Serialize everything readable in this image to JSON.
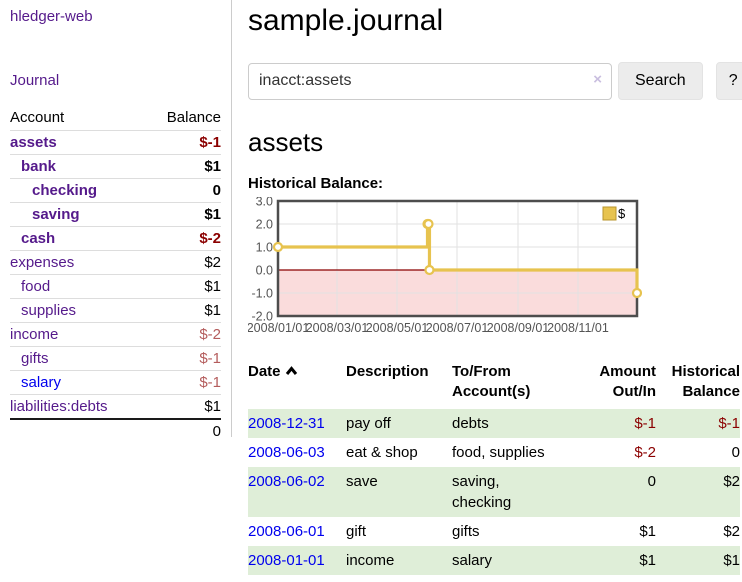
{
  "app": {
    "title": "hledger-web"
  },
  "colors": {
    "link_purple": "#551a8b",
    "link_blue": "#0000ee",
    "negative_strong": "#8b0000",
    "negative_muted": "#b45c5c",
    "row_green": "#dfeed8",
    "chart_gold": "#e7c34f",
    "chart_gold_dark": "#b8962e",
    "chart_negative_region": "#fadcdc",
    "chart_zero_line": "#8b0000"
  },
  "sidebar": {
    "journal_link": "Journal",
    "accounts": {
      "header_account": "Account",
      "header_balance": "Balance",
      "rows": [
        {
          "name": "assets",
          "balance": "$-1",
          "level": 0,
          "bold": true,
          "link_class": "link-purple",
          "balance_class": "neg-strong"
        },
        {
          "name": "bank",
          "balance": "$1",
          "level": 1,
          "bold": true,
          "link_class": "link-purple",
          "balance_class": ""
        },
        {
          "name": "checking",
          "balance": "0",
          "level": 2,
          "bold": true,
          "link_class": "link-purple",
          "balance_class": ""
        },
        {
          "name": "saving",
          "balance": "$1",
          "level": 2,
          "bold": true,
          "link_class": "link-purple",
          "balance_class": ""
        },
        {
          "name": "cash",
          "balance": "$-2",
          "level": 1,
          "bold": true,
          "link_class": "link-purple",
          "balance_class": "neg-strong"
        },
        {
          "name": "expenses",
          "balance": "$2",
          "level": 0,
          "bold": false,
          "link_class": "link-purple",
          "balance_class": ""
        },
        {
          "name": "food",
          "balance": "$1",
          "level": 1,
          "bold": false,
          "link_class": "link-purple",
          "balance_class": ""
        },
        {
          "name": "supplies",
          "balance": "$1",
          "level": 1,
          "bold": false,
          "link_class": "link-purple",
          "balance_class": ""
        },
        {
          "name": "income",
          "balance": "$-2",
          "level": 0,
          "bold": false,
          "link_class": "link-purple",
          "balance_class": "neg-muted"
        },
        {
          "name": "gifts",
          "balance": "$-1",
          "level": 1,
          "bold": false,
          "link_class": "link-purple",
          "balance_class": "neg-muted"
        },
        {
          "name": "salary",
          "balance": "$-1",
          "level": 1,
          "bold": false,
          "link_class": "link-blue",
          "balance_class": "neg-muted"
        },
        {
          "name": "liabilities:debts",
          "balance": "$1",
          "level": 0,
          "bold": false,
          "link_class": "link-purple",
          "balance_class": ""
        }
      ],
      "total": "0"
    }
  },
  "header": {
    "title": "sample.journal"
  },
  "search": {
    "query": "inacct:assets",
    "clear_icon": "×",
    "button_label": "Search",
    "help_label": "?"
  },
  "account_page": {
    "heading": "assets",
    "chart_label": "Historical Balance:"
  },
  "chart_data": {
    "type": "line",
    "title": "Historical Balance:",
    "step": true,
    "series": [
      {
        "name": "$",
        "color": "#e7c34f",
        "points": [
          [
            "2008-01-01",
            1
          ],
          [
            "2008-06-01",
            2
          ],
          [
            "2008-06-02",
            2
          ],
          [
            "2008-06-03",
            0
          ],
          [
            "2008-12-31",
            -1
          ]
        ]
      }
    ],
    "ylim": [
      -2,
      3
    ],
    "y_ticks": [
      "3.0",
      "2.0",
      "1.0",
      "0.0",
      "-1.0",
      "-2.0"
    ],
    "x_ticks": [
      "2008/01/01",
      "2008/03/01",
      "2008/05/01",
      "2008/07/01",
      "2008/09/01",
      "2008/11/01"
    ],
    "x_range": [
      "2008-01-01",
      "2008-12-31"
    ],
    "legend": {
      "label": "$",
      "position": "top-right"
    },
    "grid": true
  },
  "transactions": {
    "headers": {
      "date": "Date",
      "date_sort_icon": "chevron-up",
      "description": "Description",
      "accounts": "To/From Account(s)",
      "amount": "Amount Out/In",
      "balance": "Historical Balance"
    },
    "rows": [
      {
        "date": "2008-12-31",
        "description": "pay off",
        "accounts": "debts",
        "amount": "$-1",
        "amount_negative": true,
        "balance": "$-1",
        "balance_negative": true
      },
      {
        "date": "2008-06-03",
        "description": "eat & shop",
        "accounts": "food, supplies",
        "amount": "$-2",
        "amount_negative": true,
        "balance": "0",
        "balance_negative": false
      },
      {
        "date": "2008-06-02",
        "description": "save",
        "accounts": "saving,\nchecking",
        "amount": "0",
        "amount_negative": false,
        "balance": "$2",
        "balance_negative": false
      },
      {
        "date": "2008-06-01",
        "description": "gift",
        "accounts": "gifts",
        "amount": "$1",
        "amount_negative": false,
        "balance": "$2",
        "balance_negative": false
      },
      {
        "date": "2008-01-01",
        "description": "income",
        "accounts": "salary",
        "amount": "$1",
        "amount_negative": false,
        "balance": "$1",
        "balance_negative": false
      }
    ]
  }
}
